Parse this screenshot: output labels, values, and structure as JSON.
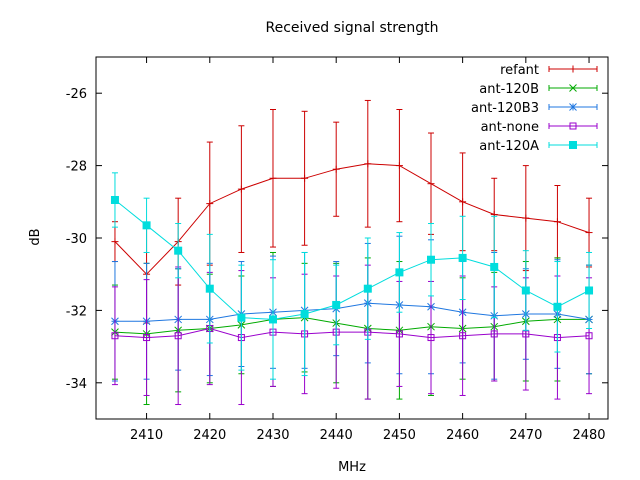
{
  "chart_data": {
    "type": "line",
    "title": "Received signal strength",
    "xlabel": "MHz",
    "ylabel": "dB",
    "xlim": [
      2402,
      2483
    ],
    "ylim": [
      -35,
      -25
    ],
    "x_ticks": [
      2410,
      2420,
      2430,
      2440,
      2450,
      2460,
      2470,
      2480
    ],
    "y_ticks": [
      -34,
      -32,
      -30,
      -28,
      -26
    ],
    "legend_position": "top-right",
    "grid": false,
    "x": [
      2405,
      2410,
      2415,
      2420,
      2425,
      2430,
      2435,
      2440,
      2445,
      2450,
      2455,
      2460,
      2465,
      2470,
      2475,
      2480
    ],
    "series": [
      {
        "name": "refant",
        "color": "#cc0000",
        "marker": "plus",
        "values": [
          -30.1,
          -31.0,
          -30.1,
          -29.05,
          -28.65,
          -28.35,
          -28.35,
          -28.1,
          -27.95,
          -28.0,
          -28.5,
          -29.0,
          -29.35,
          -29.45,
          -29.55,
          -29.85
        ],
        "errors": [
          0.55,
          1.35,
          1.2,
          1.7,
          1.75,
          1.9,
          1.85,
          1.3,
          1.75,
          1.55,
          1.4,
          1.35,
          1.0,
          1.45,
          1.0,
          0.95
        ]
      },
      {
        "name": "ant-120B",
        "color": "#00aa00",
        "marker": "x",
        "values": [
          -32.6,
          -32.65,
          -32.55,
          -32.5,
          -32.4,
          -32.25,
          -32.2,
          -32.35,
          -32.5,
          -32.55,
          -32.45,
          -32.5,
          -32.45,
          -32.3,
          -32.25,
          -32.25
        ],
        "errors": [
          1.3,
          1.95,
          1.7,
          1.5,
          1.35,
          1.85,
          1.5,
          1.65,
          1.95,
          1.9,
          1.9,
          1.4,
          1.5,
          1.65,
          1.7,
          1.5
        ]
      },
      {
        "name": "ant-120B3",
        "color": "#1f77e0",
        "marker": "asterisk",
        "values": [
          -32.3,
          -32.3,
          -32.25,
          -32.25,
          -32.1,
          -32.05,
          -32.0,
          -31.95,
          -31.8,
          -31.85,
          -31.9,
          -32.05,
          -32.15,
          -32.1,
          -32.1,
          -32.25
        ],
        "errors": [
          1.65,
          1.6,
          1.4,
          1.55,
          1.45,
          1.55,
          1.6,
          1.3,
          1.65,
          1.9,
          1.85,
          1.4,
          1.75,
          1.25,
          1.5,
          1.5
        ]
      },
      {
        "name": "ant-none",
        "color": "#9900cc",
        "marker": "square-open",
        "values": [
          -32.7,
          -32.75,
          -32.7,
          -32.5,
          -32.75,
          -32.6,
          -32.65,
          -32.6,
          -32.6,
          -32.65,
          -32.75,
          -32.7,
          -32.65,
          -32.65,
          -32.75,
          -32.7
        ],
        "errors": [
          1.35,
          1.6,
          1.9,
          1.55,
          1.85,
          1.5,
          1.65,
          1.55,
          1.85,
          1.45,
          1.55,
          1.65,
          1.3,
          1.55,
          1.7,
          1.6
        ]
      },
      {
        "name": "ant-120A",
        "color": "#00dddd",
        "marker": "square-filled",
        "values": [
          -28.95,
          -29.65,
          -30.35,
          -31.4,
          -32.2,
          -32.25,
          -32.1,
          -31.85,
          -31.4,
          -30.95,
          -30.6,
          -30.55,
          -30.8,
          -31.45,
          -31.9,
          -31.45
        ],
        "errors": [
          0.75,
          0.75,
          0.75,
          1.5,
          1.45,
          1.65,
          1.7,
          1.1,
          1.4,
          1.1,
          1.0,
          1.15,
          1.4,
          1.1,
          1.25,
          1.05
        ]
      }
    ]
  }
}
